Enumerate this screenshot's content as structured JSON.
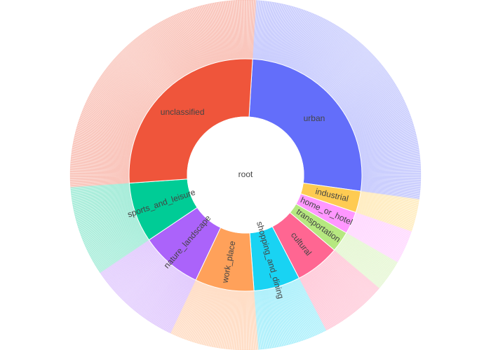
{
  "chart_data": {
    "type": "sunburst",
    "root": {
      "label": "root"
    },
    "outer_ring_note": "Outer ring is made of many thin unlabeled leaf wedges under each category; rendered as a dense striped ring with reduced opacity.",
    "categories": [
      {
        "label": "urban",
        "value": 94.5,
        "color": "#636efa"
      },
      {
        "label": "industrial",
        "value": 10.8,
        "color": "#fecb52"
      },
      {
        "label": "home_or_hotel",
        "value": 11.1,
        "color": "#ff97ff"
      },
      {
        "label": "transportation",
        "value": 10.4,
        "color": "#b6e880"
      },
      {
        "label": "cultural",
        "value": 22.3,
        "color": "#ff6692"
      },
      {
        "label": "shopping_and_dining",
        "value": 23.2,
        "color": "#19d3f3"
      },
      {
        "label": "work_place",
        "value": 29.5,
        "color": "#ffa15a"
      },
      {
        "label": "nature_landscape",
        "value": 30.7,
        "color": "#ab63fa"
      },
      {
        "label": "sports_and_leisure",
        "value": 30.0,
        "color": "#00cc96"
      },
      {
        "label": "unclassified",
        "value": 97.5,
        "color": "#ef553b"
      }
    ]
  }
}
